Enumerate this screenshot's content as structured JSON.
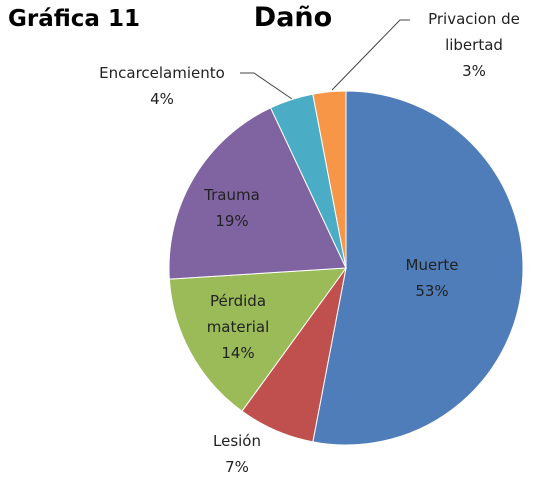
{
  "heading": "Gráfica 11",
  "chart_data": {
    "type": "pie",
    "title": "Daño",
    "categories": [
      "Muerte",
      "Lesión",
      "Pérdida material",
      "Trauma",
      "Encarcelamiento",
      "Privacion de libertad"
    ],
    "values": [
      53,
      7,
      14,
      19,
      4,
      3
    ],
    "value_labels": [
      "53%",
      "7%",
      "14%",
      "19%",
      "4%",
      "3%"
    ],
    "colors": [
      "#4f7db9",
      "#c0504d",
      "#9bbb59",
      "#8064a2",
      "#4bacc6",
      "#f79646"
    ]
  }
}
